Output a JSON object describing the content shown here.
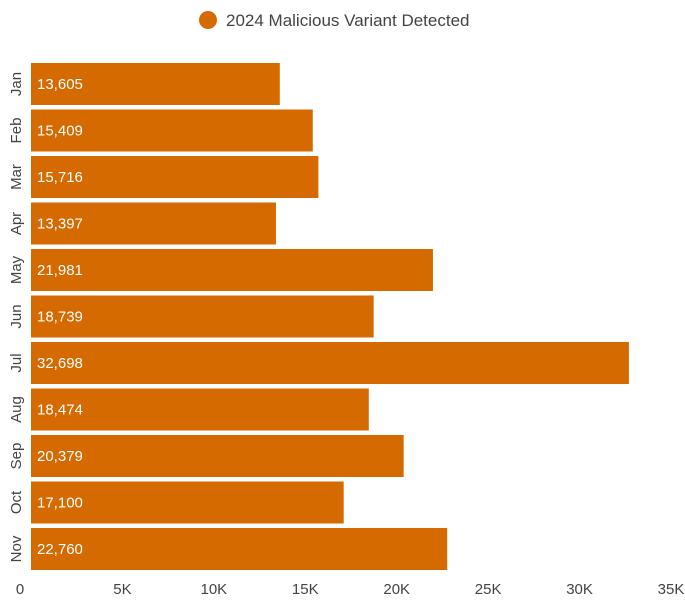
{
  "chart_data": {
    "type": "bar",
    "orientation": "horizontal",
    "categories": [
      "Jan",
      "Feb",
      "Mar",
      "Apr",
      "May",
      "Jun",
      "Jul",
      "Aug",
      "Sep",
      "Oct",
      "Nov"
    ],
    "series": [
      {
        "name": "2024 Malicious Variant Detected",
        "color": "#D46A00",
        "values": [
          13605,
          15409,
          15716,
          13397,
          21981,
          18739,
          32698,
          18474,
          20379,
          17100,
          22760
        ],
        "labels": [
          "13,605",
          "15,409",
          "15,716",
          "13,397",
          "21,981",
          "18,739",
          "32,698",
          "18,474",
          "20,379",
          "17,100",
          "22,760"
        ]
      }
    ],
    "xlim": [
      0,
      35000
    ],
    "xticks": [
      0,
      5000,
      10000,
      15000,
      20000,
      25000,
      30000,
      35000
    ],
    "xtick_labels": [
      "0",
      "5K",
      "10K",
      "15K",
      "20K",
      "25K",
      "30K",
      "35K"
    ],
    "legend_position": "top-center",
    "grid": false
  }
}
